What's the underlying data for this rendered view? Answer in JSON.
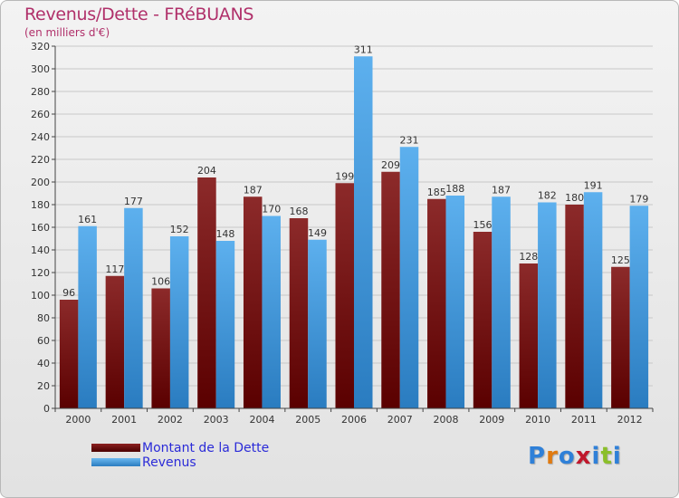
{
  "header": {
    "title": "Revenus/Dette - FRéBUANS",
    "subtitle": "(en milliers d'€)"
  },
  "chart_data": {
    "type": "bar",
    "title": "Revenus/Dette - FRéBUANS",
    "ylabel": "(en milliers d'€)",
    "xlabel": "",
    "categories": [
      "2000",
      "2001",
      "2002",
      "2003",
      "2004",
      "2005",
      "2006",
      "2007",
      "2008",
      "2009",
      "2010",
      "2011",
      "2012"
    ],
    "series": [
      {
        "name": "Montant de la Dette",
        "color": "#7a1010",
        "values": [
          96,
          117,
          106,
          204,
          187,
          168,
          199,
          209,
          185,
          156,
          128,
          180,
          125
        ]
      },
      {
        "name": "Revenus",
        "color": "#4aa3e6",
        "values": [
          161,
          177,
          152,
          148,
          170,
          149,
          311,
          231,
          188,
          187,
          182,
          191,
          179
        ]
      }
    ],
    "ylim": [
      0,
      320
    ],
    "yticks": [
      0,
      20,
      40,
      60,
      80,
      100,
      120,
      140,
      160,
      180,
      200,
      220,
      240,
      260,
      280,
      300,
      320
    ],
    "grid": true,
    "legend_position": "bottom-left"
  },
  "legend": {
    "items": [
      {
        "label": "Montant de la Dette",
        "color": "#6b0a0a"
      },
      {
        "label": "Revenus",
        "color": "#3f9be0"
      }
    ]
  },
  "logo": {
    "letters": [
      "P",
      "r",
      "o",
      "x",
      "i",
      "t",
      "i"
    ],
    "colors": [
      "#2f80d8",
      "#e07a10",
      "#2f80d8",
      "#c0182c",
      "#2f80d8",
      "#8bbf2a",
      "#2f80d8"
    ]
  }
}
